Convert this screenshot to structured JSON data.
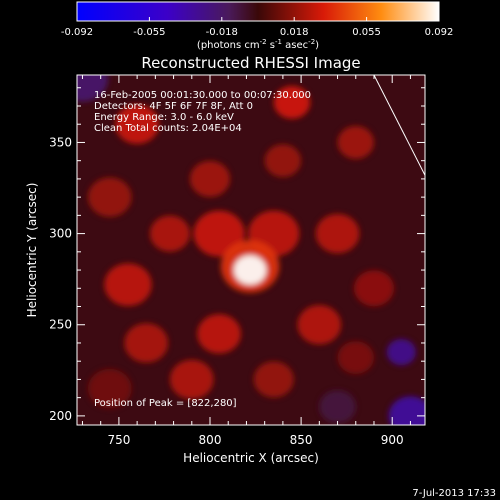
{
  "chart_data": {
    "type": "heatmap",
    "title": "Reconstructed RHESSI Image",
    "xlabel": "Heliocentric X (arcsec)",
    "ylabel": "Heliocentric Y (arcsec)",
    "xlim": [
      727,
      918
    ],
    "ylim": [
      195,
      387
    ],
    "x_ticks": [
      750,
      800,
      850,
      900
    ],
    "y_ticks": [
      200,
      250,
      300,
      350
    ],
    "grid": false,
    "colorbar": {
      "ticks": [
        "-0.092",
        "-0.055",
        "-0.018",
        "0.018",
        "0.055",
        "0.092"
      ],
      "range": [
        -0.092,
        0.092
      ],
      "unit_label": "(photons cm",
      "unit_exp1": "-2",
      "unit_mid": " s",
      "unit_exp2": "-1",
      "unit_mid2": " asec",
      "unit_exp3": "-2",
      "unit_close": ")"
    },
    "annotations": [
      "16-Feb-2005 00:01:30.000 to 00:07:30.000",
      "Detectors: 4F 5F 6F 7F 8F, Att 0",
      "Energy Range: 3.0 - 6.0 keV",
      "Clean    Total counts: 2.04E+04"
    ],
    "peak_label": "Position of Peak = [822,280]",
    "peak": {
      "x": 822,
      "y": 280,
      "value": 0.092
    },
    "limb_line": [
      [
        890,
        387
      ],
      [
        918,
        332
      ]
    ],
    "blobs": [
      {
        "x": 822,
        "y": 280,
        "r": 9,
        "v": 0.092
      },
      {
        "x": 822,
        "y": 282,
        "r": 16,
        "v": 0.04
      },
      {
        "x": 805,
        "y": 300,
        "r": 14,
        "v": 0.03
      },
      {
        "x": 835,
        "y": 300,
        "r": 14,
        "v": 0.028
      },
      {
        "x": 760,
        "y": 360,
        "r": 12,
        "v": 0.03
      },
      {
        "x": 845,
        "y": 372,
        "r": 10,
        "v": 0.032
      },
      {
        "x": 880,
        "y": 350,
        "r": 10,
        "v": 0.022
      },
      {
        "x": 745,
        "y": 320,
        "r": 12,
        "v": 0.02
      },
      {
        "x": 755,
        "y": 272,
        "r": 13,
        "v": 0.028
      },
      {
        "x": 778,
        "y": 300,
        "r": 11,
        "v": 0.025
      },
      {
        "x": 870,
        "y": 300,
        "r": 12,
        "v": 0.026
      },
      {
        "x": 890,
        "y": 270,
        "r": 11,
        "v": 0.018
      },
      {
        "x": 860,
        "y": 250,
        "r": 12,
        "v": 0.026
      },
      {
        "x": 805,
        "y": 245,
        "r": 12,
        "v": 0.028
      },
      {
        "x": 765,
        "y": 240,
        "r": 12,
        "v": 0.024
      },
      {
        "x": 790,
        "y": 220,
        "r": 12,
        "v": 0.025
      },
      {
        "x": 835,
        "y": 220,
        "r": 11,
        "v": 0.02
      },
      {
        "x": 880,
        "y": 232,
        "r": 10,
        "v": 0.014
      },
      {
        "x": 745,
        "y": 215,
        "r": 12,
        "v": 0.012
      },
      {
        "x": 905,
        "y": 235,
        "r": 8,
        "v": -0.03
      },
      {
        "x": 730,
        "y": 385,
        "r": 14,
        "v": -0.02
      },
      {
        "x": 910,
        "y": 200,
        "r": 12,
        "v": -0.035
      },
      {
        "x": 870,
        "y": 205,
        "r": 10,
        "v": -0.01
      },
      {
        "x": 800,
        "y": 330,
        "r": 11,
        "v": 0.022
      },
      {
        "x": 840,
        "y": 340,
        "r": 10,
        "v": 0.02
      }
    ]
  },
  "footer": {
    "timestamp": "7-Jul-2013 17:33"
  }
}
